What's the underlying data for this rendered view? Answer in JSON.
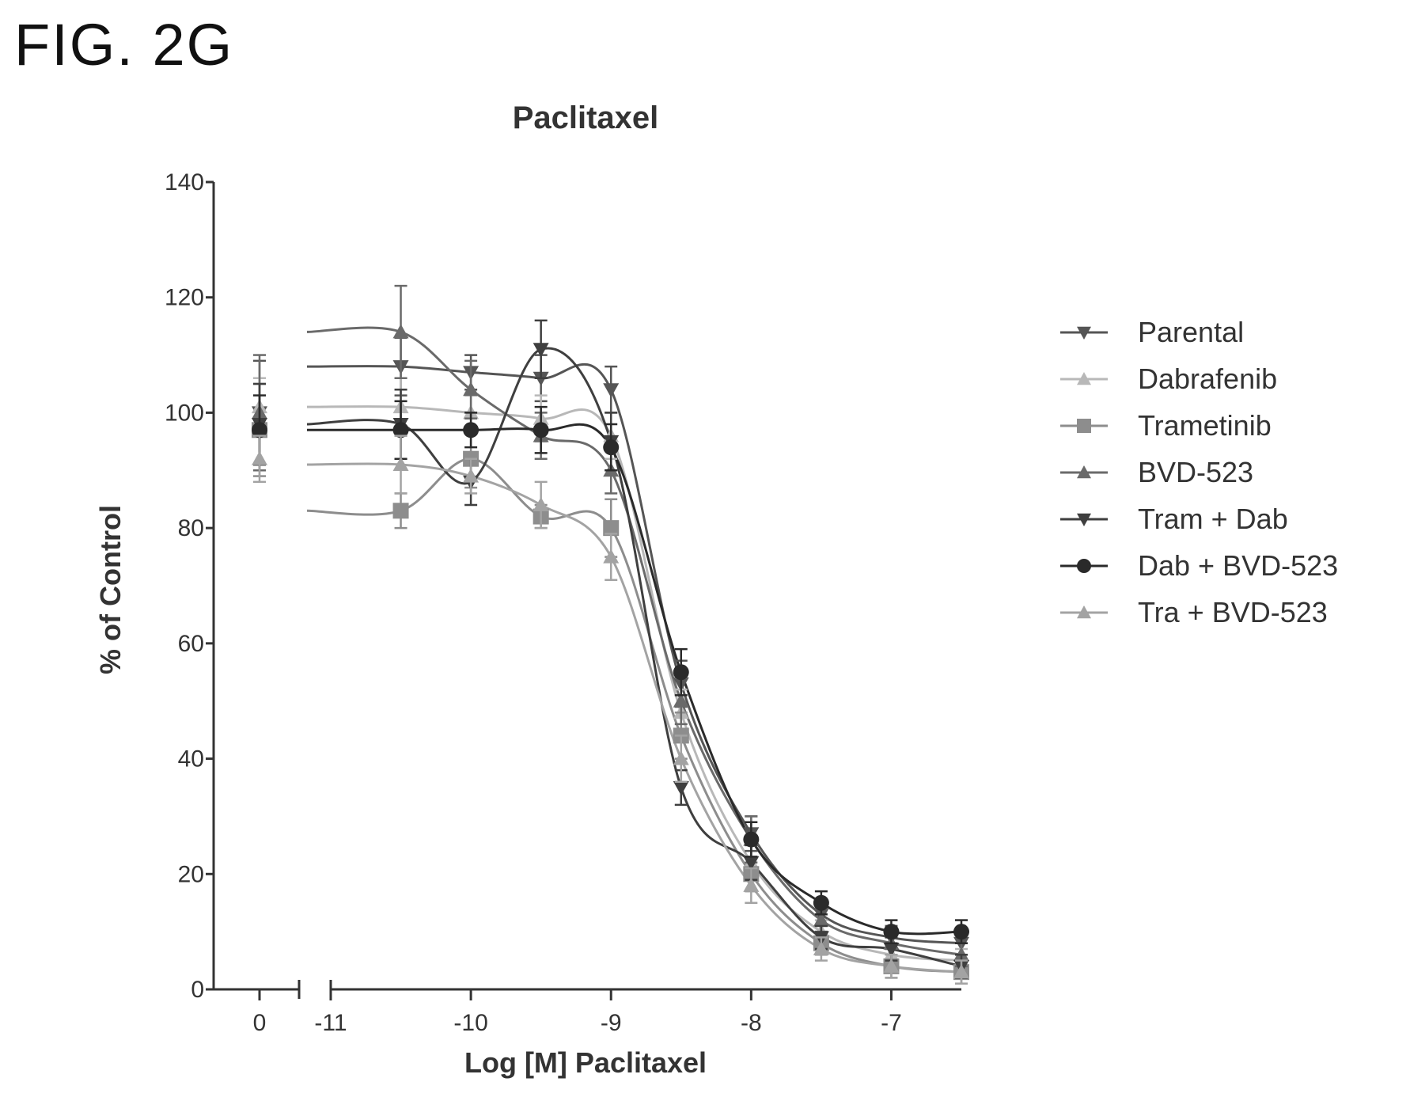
{
  "figure_label": "FIG. 2G",
  "chart_data": {
    "type": "line",
    "title": "Paclitaxel",
    "xlabel": "Log [M] Paclitaxel",
    "ylabel": "% of Control",
    "ylim": [
      0,
      140
    ],
    "yticks": [
      0,
      20,
      40,
      60,
      80,
      100,
      120,
      140
    ],
    "x_axis_broken": true,
    "x_zero_segment_ticks": [
      0
    ],
    "xlim_main": [
      -11,
      -6.5
    ],
    "xticks_main": [
      -11,
      -10,
      -9,
      -8,
      -7
    ],
    "xtick_labels": [
      "0",
      "-11",
      "-10",
      "-9",
      "-8",
      "-7"
    ],
    "legend_position": "right",
    "x_points": [
      -10.5,
      -10,
      -9.5,
      -9,
      -8.5,
      -8,
      -7.5,
      -7,
      -6.5
    ],
    "series": [
      {
        "name": "Parental",
        "color": "#555555",
        "marker": "triangle-down",
        "zero_value": 100,
        "zero_error": 9,
        "values": [
          108,
          107,
          106,
          104,
          53,
          27,
          13,
          9,
          8
        ],
        "errors": [
          5,
          3,
          4,
          4,
          4,
          3,
          2,
          2,
          2
        ]
      },
      {
        "name": "Dabrafenib",
        "color": "#b8b8b8",
        "marker": "triangle-up",
        "zero_value": 101,
        "zero_error": 5,
        "values": [
          101,
          100,
          99,
          96,
          48,
          22,
          10,
          6,
          5
        ],
        "errors": [
          5,
          3,
          4,
          4,
          4,
          3,
          2,
          2,
          2
        ]
      },
      {
        "name": "Trametinib",
        "color": "#8d8d8d",
        "marker": "square",
        "zero_value": 97,
        "zero_error": 8,
        "values": [
          83,
          92,
          82,
          80,
          44,
          20,
          8,
          4,
          3
        ],
        "errors": [
          3,
          5,
          2,
          5,
          4,
          3,
          2,
          2,
          2
        ]
      },
      {
        "name": "BVD-523",
        "color": "#6a6a6a",
        "marker": "triangle-up",
        "zero_value": 100,
        "zero_error": 10,
        "values": [
          114,
          104,
          96,
          90,
          50,
          26,
          12,
          8,
          6
        ],
        "errors": [
          8,
          5,
          4,
          4,
          4,
          4,
          2,
          2,
          2
        ]
      },
      {
        "name": "Tram + Dab",
        "color": "#3f3f3f",
        "marker": "triangle-down",
        "zero_value": 98,
        "zero_error": 7,
        "values": [
          98,
          88,
          111,
          95,
          35,
          22,
          9,
          7,
          4
        ],
        "errors": [
          6,
          4,
          5,
          5,
          3,
          3,
          2,
          2,
          2
        ]
      },
      {
        "name": "Dab + BVD-523",
        "color": "#2a2a2a",
        "marker": "circle",
        "zero_value": 97,
        "zero_error": 6,
        "values": [
          97,
          97,
          97,
          94,
          55,
          26,
          15,
          10,
          10
        ],
        "errors": [
          5,
          3,
          4,
          4,
          4,
          3,
          2,
          2,
          2
        ]
      },
      {
        "name": "Tra + BVD-523",
        "color": "#a3a3a3",
        "marker": "triangle-up",
        "zero_value": 92,
        "zero_error": 4,
        "values": [
          91,
          89,
          84,
          75,
          40,
          18,
          7,
          4,
          3
        ],
        "errors": [
          5,
          3,
          4,
          4,
          4,
          3,
          2,
          2,
          2
        ]
      }
    ]
  }
}
